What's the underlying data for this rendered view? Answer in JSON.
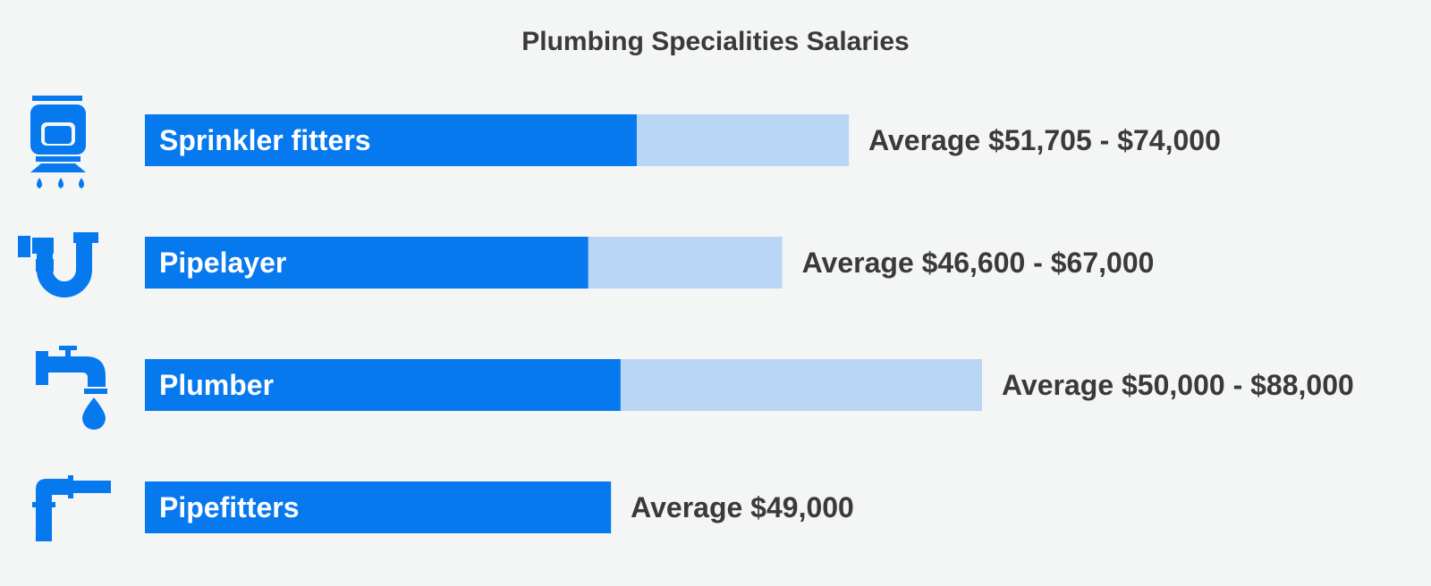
{
  "chart_data": {
    "type": "bar",
    "orientation": "horizontal",
    "title": "Plumbing Specialities Salaries",
    "unit": "USD",
    "categories": [
      "Sprinkler fitters",
      "Pipelayer",
      "Plumber",
      "Pipefitters"
    ],
    "icons": [
      "sprinkler-icon",
      "p-trap-pipe-icon",
      "faucet-icon",
      "elbow-pipe-icon"
    ],
    "series": [
      {
        "values": [
          51705,
          46600,
          50000,
          49000
        ]
      },
      {
        "values": [
          74000,
          67000,
          88000,
          null
        ]
      }
    ],
    "value_labels": [
      "Average $51,705 - $74,000",
      "Average $46,600 - $67,000",
      "Average $50,000 - $88,000",
      "Average $49,000"
    ],
    "xlim": [
      0,
      88000
    ],
    "grid": false,
    "legend": "none",
    "colors": {
      "low": "#0779ef",
      "high": "#b9d6f5",
      "text": "#3a3a3a",
      "bar_label": "#ffffff",
      "background": "#f4f5f5"
    }
  }
}
